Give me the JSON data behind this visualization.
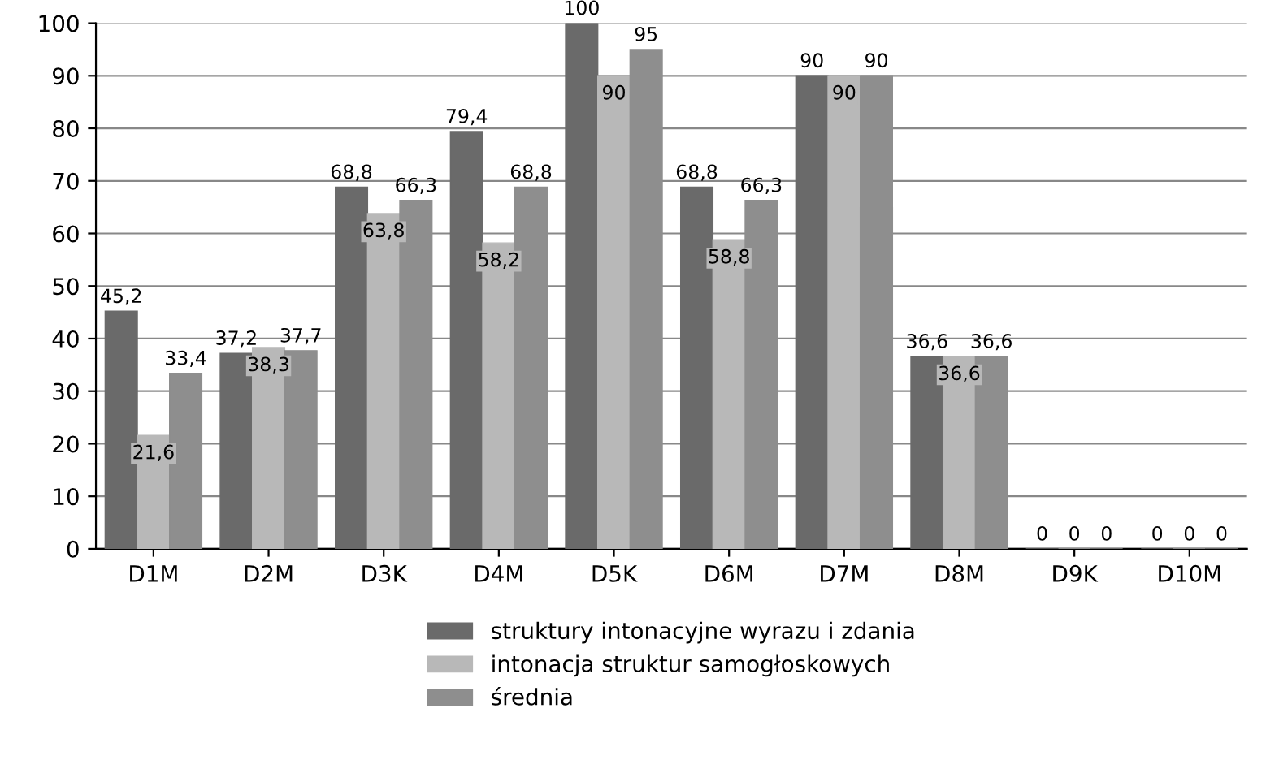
{
  "chart_data": {
    "type": "bar",
    "categories": [
      "D1M",
      "D2M",
      "D3K",
      "D4M",
      "D5K",
      "D6M",
      "D7M",
      "D8M",
      "D9K",
      "D10M"
    ],
    "series": [
      {
        "name": "struktury intonacyjne wyrazu i zdania",
        "color": "#6a6a6a",
        "values": [
          45.2,
          37.2,
          68.8,
          79.4,
          100,
          68.8,
          90,
          36.6,
          0,
          0
        ],
        "value_labels": [
          "45,2",
          "37,2",
          "68,8",
          "79,4",
          "100",
          "68,8",
          "90",
          "36,6",
          "0",
          "0"
        ]
      },
      {
        "name": "intonacja struktur samogłoskowych",
        "color": "#b8b8b8",
        "values": [
          21.6,
          38.3,
          63.8,
          58.2,
          90,
          58.8,
          90,
          36.6,
          0,
          0
        ],
        "value_labels": [
          "21,6",
          "38,3",
          "63,8",
          "58,2",
          "90",
          "58,8",
          "90",
          "36,6",
          "0",
          "0"
        ]
      },
      {
        "name": "średnia",
        "color": "#8e8e8e",
        "values": [
          33.4,
          37.7,
          66.3,
          68.8,
          95,
          66.3,
          90,
          36.6,
          0,
          0
        ],
        "value_labels": [
          "33,4",
          "37,7",
          "66,3",
          "68,8",
          "95",
          "66,3",
          "90",
          "36,6",
          "0",
          "0"
        ]
      }
    ],
    "ylim": [
      0,
      100
    ],
    "yticks": [
      0,
      10,
      20,
      30,
      40,
      50,
      60,
      70,
      80,
      90,
      100
    ],
    "grid": "y",
    "legend": "bottom"
  }
}
